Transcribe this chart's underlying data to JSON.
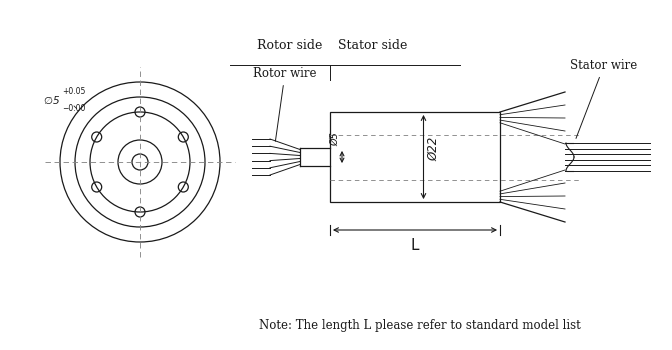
{
  "bg_color": "#ffffff",
  "line_color": "#1a1a1a",
  "dash_color": "#888888",
  "title_note": "Note: The length L please refer to standard model list",
  "rotor_side_label": "Rotor side",
  "stator_side_label": "Stator side",
  "rotor_wire_label": "Rotor wire",
  "stator_wire_label": "Stator wire",
  "dim_phi22": "Ø22",
  "dim_phi5": "Ø5",
  "dim_L": "L",
  "fig_width": 6.72,
  "fig_height": 3.5
}
